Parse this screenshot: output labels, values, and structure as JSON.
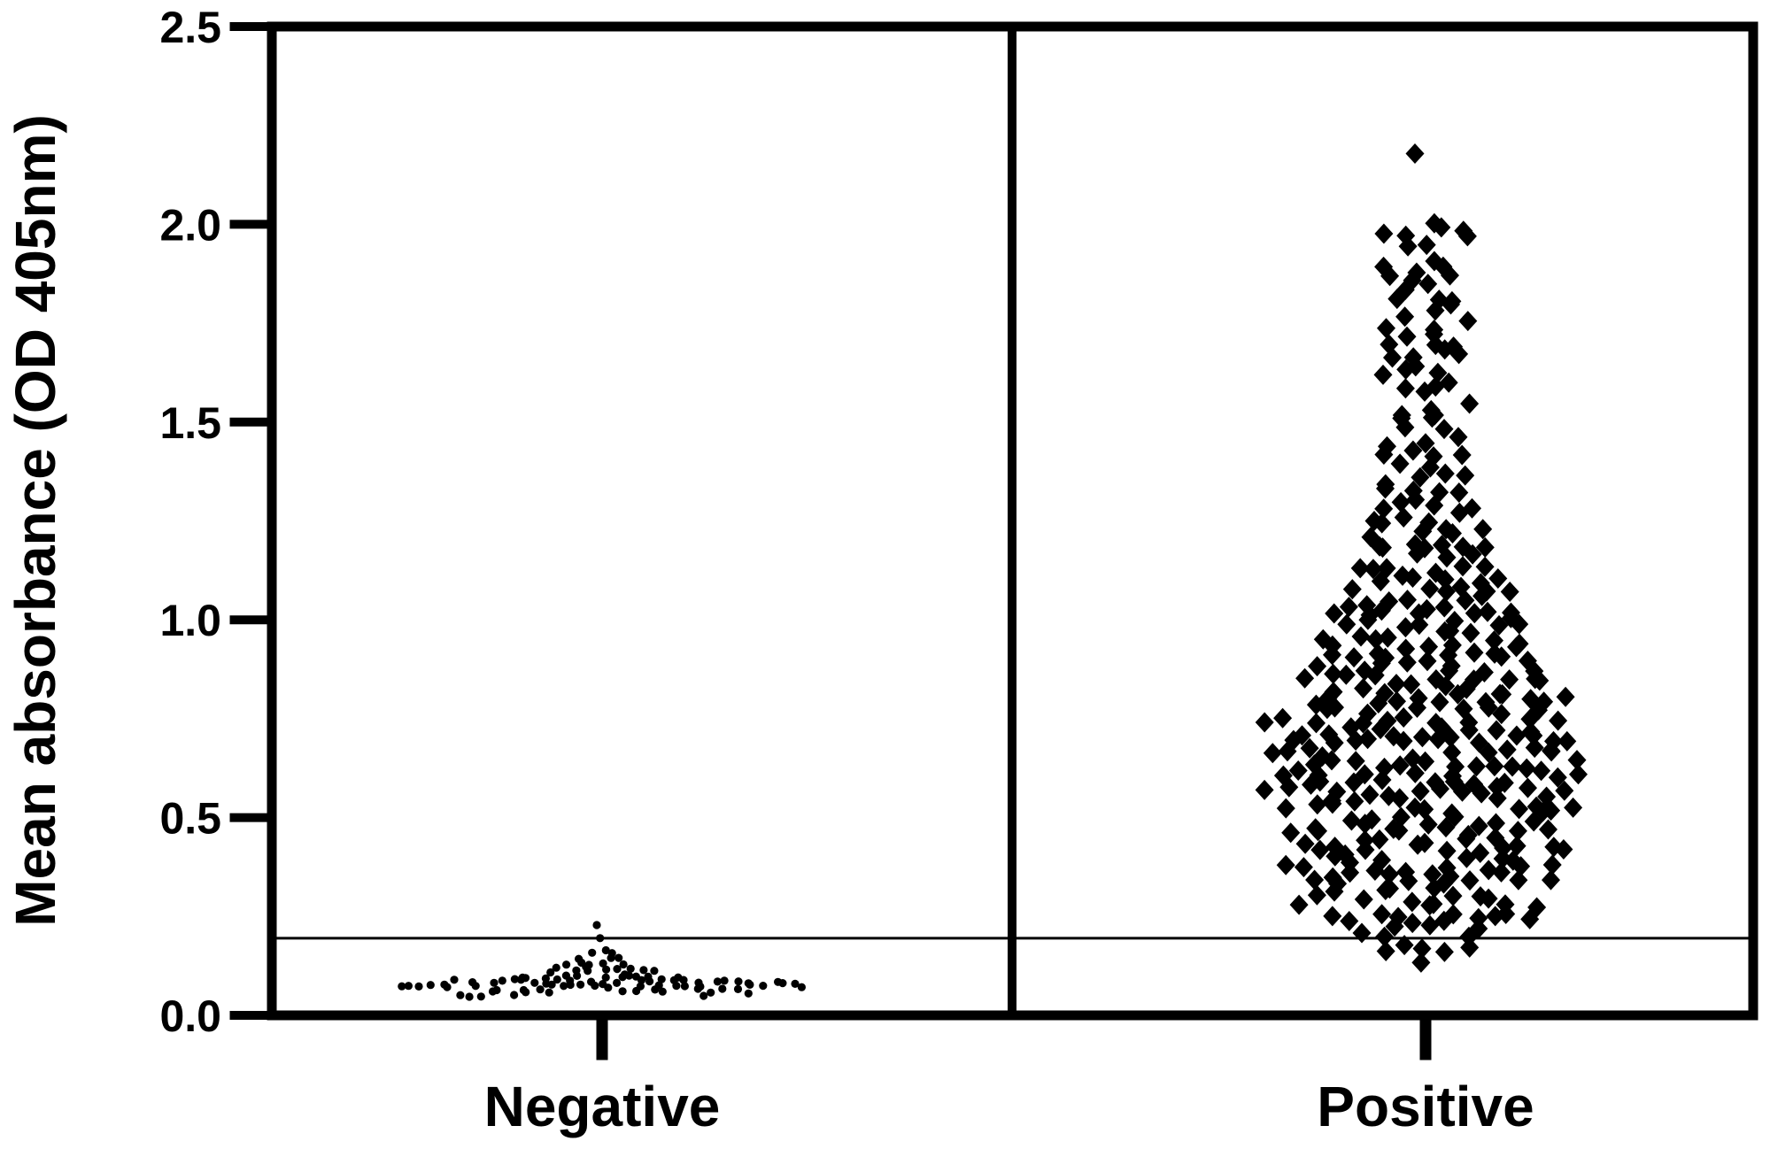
{
  "page": {
    "background": "#ffffff",
    "ink": "#000000"
  },
  "chart_data": {
    "type": "scatter",
    "subtype": "beeswarm_dot_plot",
    "title": "",
    "xlabel": "",
    "ylabel": "Mean absorbance (OD 405nm)",
    "ylim": [
      0.0,
      2.5
    ],
    "yticks": [
      "0.0",
      "0.5",
      "1.0",
      "1.5",
      "2.0",
      "2.5"
    ],
    "ytick_values": [
      0.0,
      0.5,
      1.0,
      1.5,
      2.0,
      2.5
    ],
    "grid": false,
    "legend": false,
    "marker_color": "#000000",
    "axis_color": "#000000",
    "panel_divider": true,
    "cutoff_line": {
      "od_value": 0.195,
      "description": "assay cutoff threshold",
      "stroke": "#000000"
    },
    "categories": [
      "Negative",
      "Positive"
    ],
    "series": [
      {
        "name": "Negative",
        "marker": "circle",
        "n_points": 102,
        "od_range": [
          0.055,
          0.23
        ],
        "value_distribution": [
          {
            "from": 0.055,
            "to": 0.075,
            "count": 32
          },
          {
            "from": 0.075,
            "to": 0.09,
            "count": 34
          },
          {
            "from": 0.09,
            "to": 0.105,
            "count": 12
          },
          {
            "from": 0.105,
            "to": 0.12,
            "count": 10
          },
          {
            "from": 0.12,
            "to": 0.14,
            "count": 7
          },
          {
            "from": 0.14,
            "to": 0.165,
            "count": 5
          }
        ],
        "outlier_values": [
          0.185,
          0.227
        ]
      },
      {
        "name": "Positive",
        "marker": "diamond",
        "n_points": 404,
        "od_range": [
          0.135,
          2.19
        ],
        "value_distribution": [
          {
            "from": 0.13,
            "to": 0.2,
            "count": 7
          },
          {
            "from": 0.2,
            "to": 0.25,
            "count": 10
          },
          {
            "from": 0.25,
            "to": 0.3,
            "count": 14
          },
          {
            "from": 0.3,
            "to": 0.4,
            "count": 33
          },
          {
            "from": 0.4,
            "to": 0.5,
            "count": 34
          },
          {
            "from": 0.5,
            "to": 0.6,
            "count": 38
          },
          {
            "from": 0.6,
            "to": 0.7,
            "count": 42
          },
          {
            "from": 0.7,
            "to": 0.8,
            "count": 38
          },
          {
            "from": 0.8,
            "to": 0.9,
            "count": 33
          },
          {
            "from": 0.9,
            "to": 1.0,
            "count": 28
          },
          {
            "from": 1.0,
            "to": 1.1,
            "count": 24
          },
          {
            "from": 1.1,
            "to": 1.2,
            "count": 18
          },
          {
            "from": 1.2,
            "to": 1.3,
            "count": 15
          },
          {
            "from": 1.3,
            "to": 1.4,
            "count": 11
          },
          {
            "from": 1.4,
            "to": 1.5,
            "count": 10
          },
          {
            "from": 1.5,
            "to": 1.6,
            "count": 8
          },
          {
            "from": 1.6,
            "to": 1.7,
            "count": 11
          },
          {
            "from": 1.7,
            "to": 1.8,
            "count": 9
          },
          {
            "from": 1.8,
            "to": 1.9,
            "count": 10
          },
          {
            "from": 1.9,
            "to": 1.93,
            "count": 2
          },
          {
            "from": 1.93,
            "to": 2.0,
            "count": 8
          }
        ],
        "outlier_values": [
          2.19
        ]
      }
    ]
  }
}
